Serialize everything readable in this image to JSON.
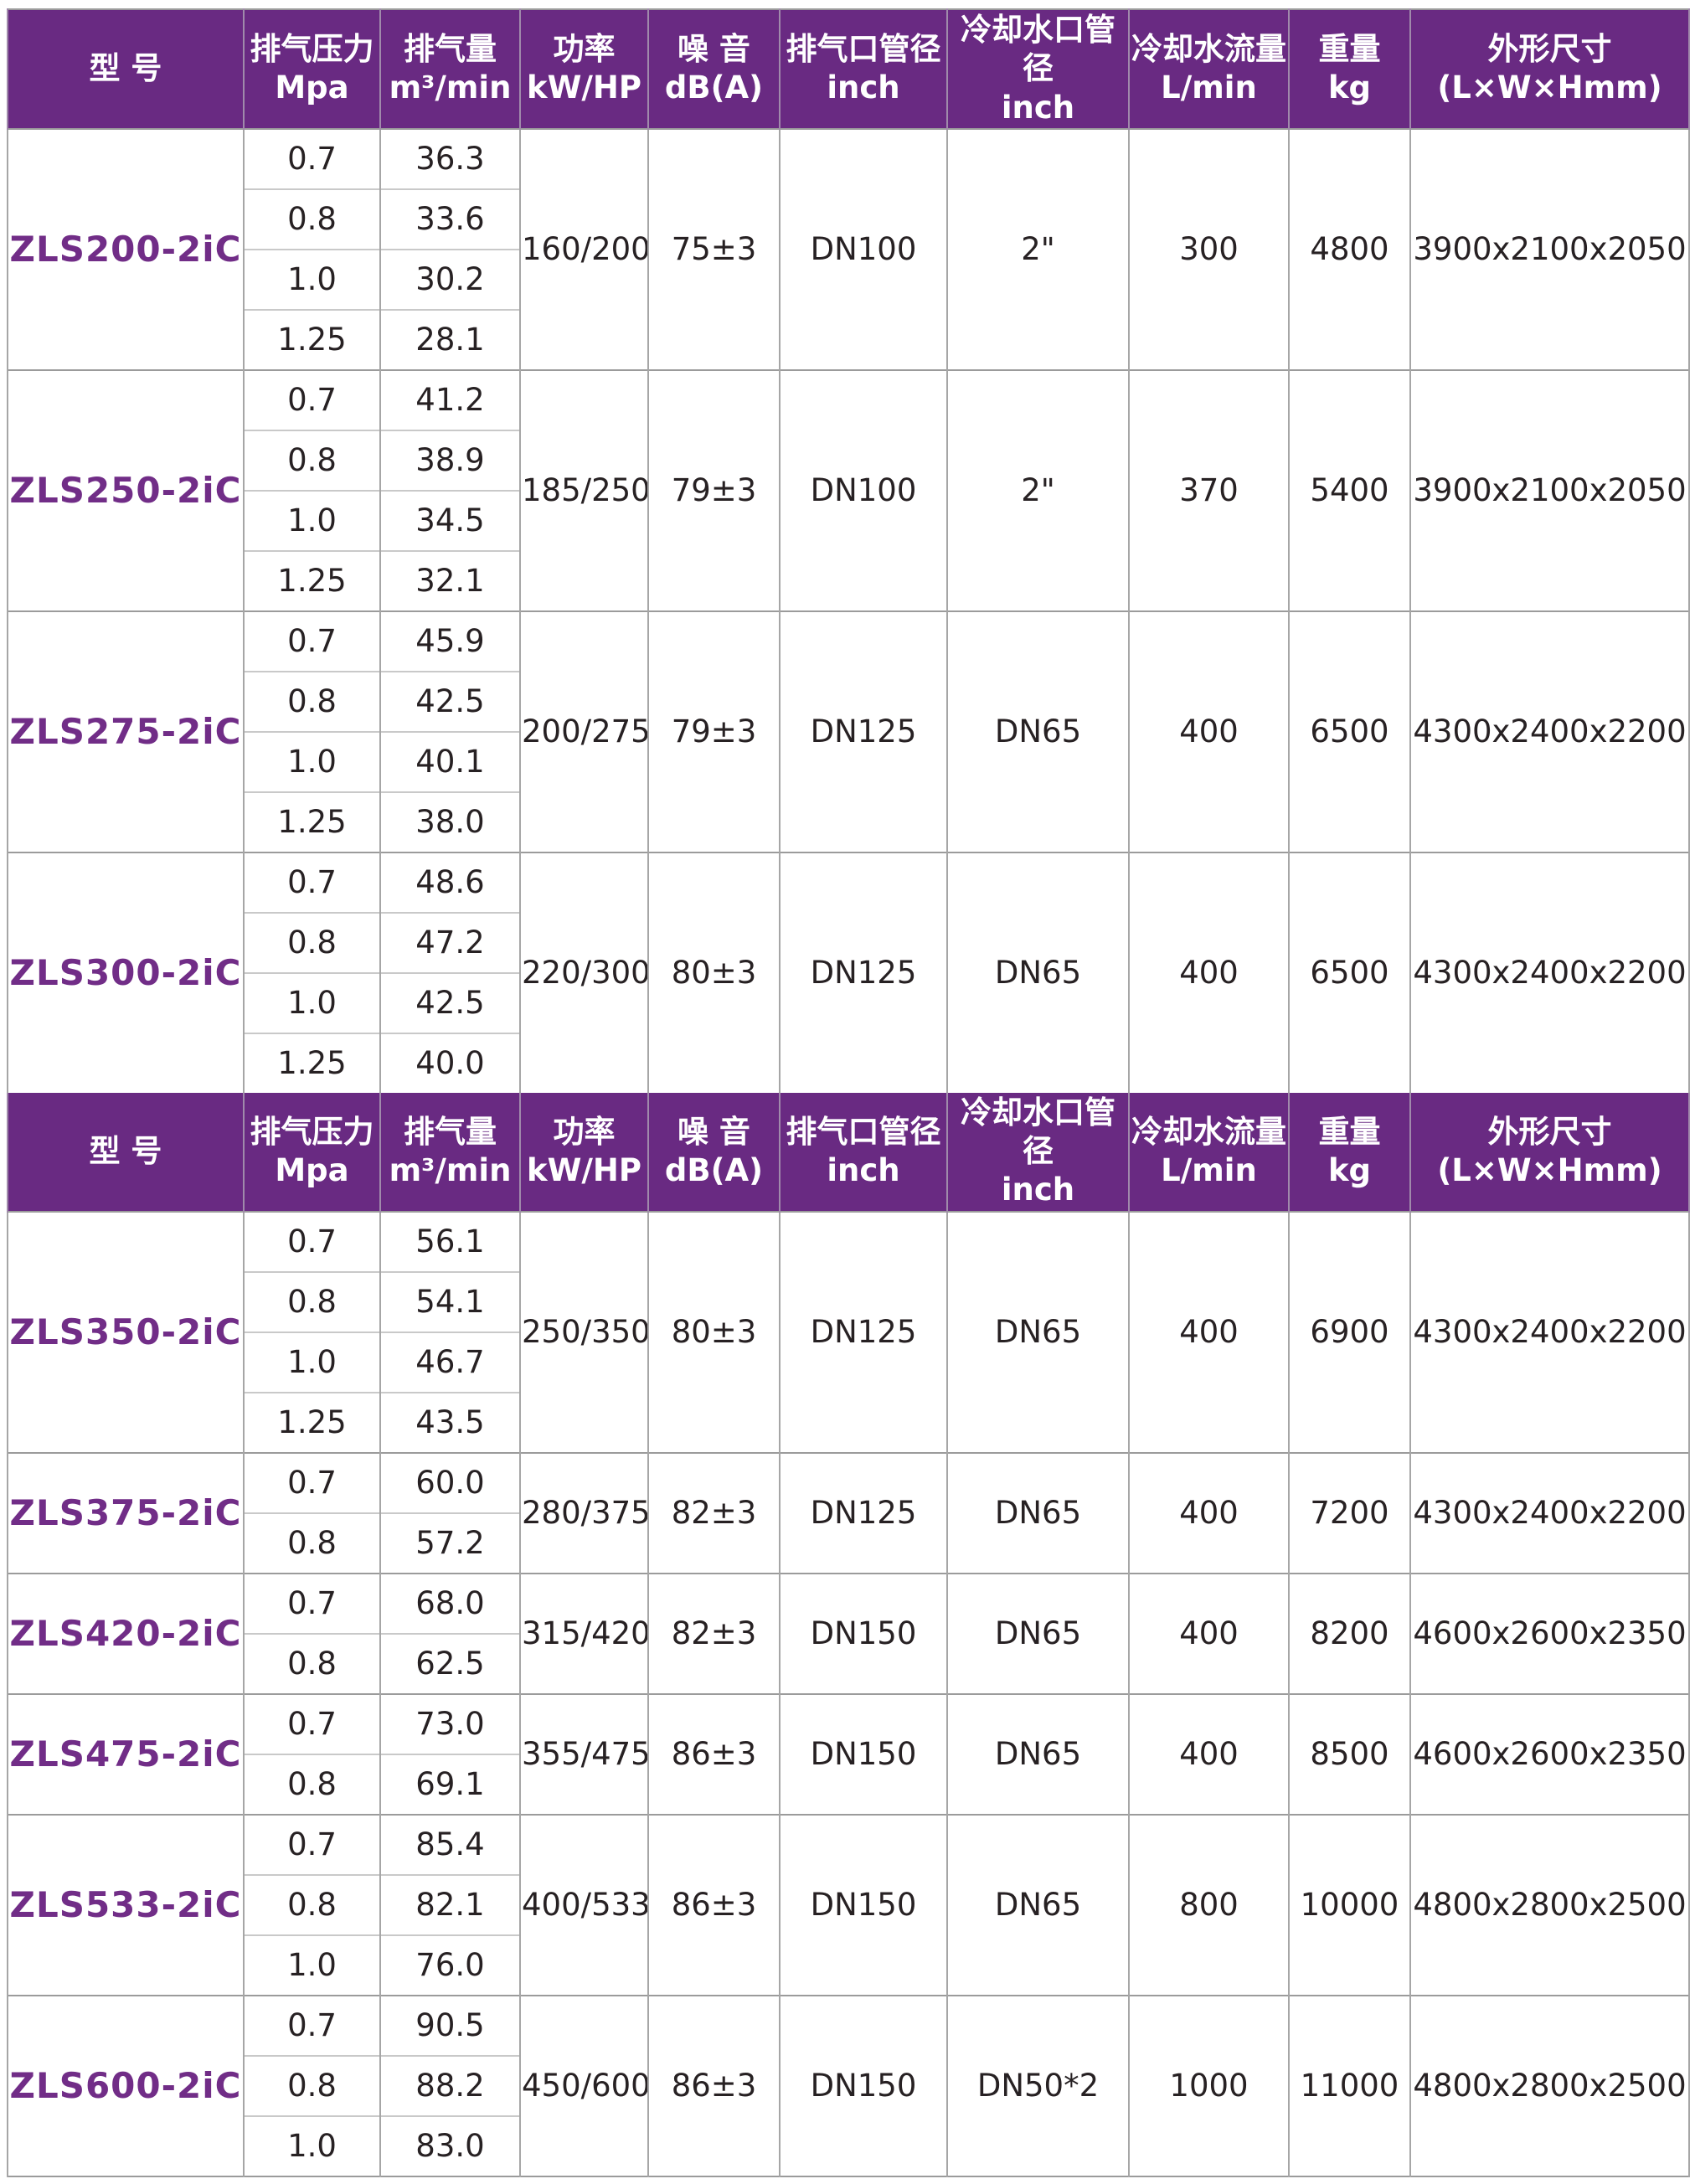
{
  "colors": {
    "header_bg": "#692a82",
    "header_text": "#ffffff",
    "model_text": "#712d87",
    "data_text": "#272123",
    "grid_line": "#a6a6a6",
    "block_line": "#9b9b9b",
    "sub_line": "#c9c9c9"
  },
  "table": {
    "columns": [
      {
        "id": "model",
        "line1": "型  号",
        "line2": ""
      },
      {
        "id": "press",
        "line1": "排气压力",
        "line2": "Mpa"
      },
      {
        "id": "vol",
        "line1": "排气量",
        "line2": "m³/min"
      },
      {
        "id": "power",
        "line1": "功率",
        "line2": "kW/HP"
      },
      {
        "id": "noise",
        "line1": "噪 音",
        "line2": "dB(A)"
      },
      {
        "id": "outlet",
        "line1": "排气口管径",
        "line2": "inch"
      },
      {
        "id": "coolport",
        "line1": "冷却水口管径",
        "line2": "inch"
      },
      {
        "id": "coolflow",
        "line1": "冷却水流量",
        "line2": "L/min"
      },
      {
        "id": "weight",
        "line1": "重量",
        "line2": "kg"
      },
      {
        "id": "dims",
        "line1": "外形尺寸",
        "line2": "(L×W×Hmm)"
      }
    ],
    "sections": [
      {
        "models": [
          {
            "model": "ZLS200-2iC",
            "rows": [
              {
                "pressure": "0.7",
                "volume": "36.3"
              },
              {
                "pressure": "0.8",
                "volume": "33.6"
              },
              {
                "pressure": "1.0",
                "volume": "30.2"
              },
              {
                "pressure": "1.25",
                "volume": "28.1"
              }
            ],
            "power": "160/200",
            "noise": "75±3",
            "outlet": "DN100",
            "coolport": "2\"",
            "coolflow": "300",
            "weight": "4800",
            "dims": "3900x2100x2050"
          },
          {
            "model": "ZLS250-2iC",
            "rows": [
              {
                "pressure": "0.7",
                "volume": "41.2"
              },
              {
                "pressure": "0.8",
                "volume": "38.9"
              },
              {
                "pressure": "1.0",
                "volume": "34.5"
              },
              {
                "pressure": "1.25",
                "volume": "32.1"
              }
            ],
            "power": "185/250",
            "noise": "79±3",
            "outlet": "DN100",
            "coolport": "2\"",
            "coolflow": "370",
            "weight": "5400",
            "dims": "3900x2100x2050"
          },
          {
            "model": "ZLS275-2iC",
            "rows": [
              {
                "pressure": "0.7",
                "volume": "45.9"
              },
              {
                "pressure": "0.8",
                "volume": "42.5"
              },
              {
                "pressure": "1.0",
                "volume": "40.1"
              },
              {
                "pressure": "1.25",
                "volume": "38.0"
              }
            ],
            "power": "200/275",
            "noise": "79±3",
            "outlet": "DN125",
            "coolport": "DN65",
            "coolflow": "400",
            "weight": "6500",
            "dims": "4300x2400x2200"
          },
          {
            "model": "ZLS300-2iC",
            "rows": [
              {
                "pressure": "0.7",
                "volume": "48.6"
              },
              {
                "pressure": "0.8",
                "volume": "47.2"
              },
              {
                "pressure": "1.0",
                "volume": "42.5"
              },
              {
                "pressure": "1.25",
                "volume": "40.0"
              }
            ],
            "power": "220/300",
            "noise": "80±3",
            "outlet": "DN125",
            "coolport": "DN65",
            "coolflow": "400",
            "weight": "6500",
            "dims": "4300x2400x2200"
          }
        ]
      },
      {
        "models": [
          {
            "model": "ZLS350-2iC",
            "rows": [
              {
                "pressure": "0.7",
                "volume": "56.1"
              },
              {
                "pressure": "0.8",
                "volume": "54.1"
              },
              {
                "pressure": "1.0",
                "volume": "46.7"
              },
              {
                "pressure": "1.25",
                "volume": "43.5"
              }
            ],
            "power": "250/350",
            "noise": "80±3",
            "outlet": "DN125",
            "coolport": "DN65",
            "coolflow": "400",
            "weight": "6900",
            "dims": "4300x2400x2200"
          },
          {
            "model": "ZLS375-2iC",
            "rows": [
              {
                "pressure": "0.7",
                "volume": "60.0"
              },
              {
                "pressure": "0.8",
                "volume": "57.2"
              }
            ],
            "power": "280/375",
            "noise": "82±3",
            "outlet": "DN125",
            "coolport": "DN65",
            "coolflow": "400",
            "weight": "7200",
            "dims": "4300x2400x2200"
          },
          {
            "model": "ZLS420-2iC",
            "rows": [
              {
                "pressure": "0.7",
                "volume": "68.0"
              },
              {
                "pressure": "0.8",
                "volume": "62.5"
              }
            ],
            "power": "315/420",
            "noise": "82±3",
            "outlet": "DN150",
            "coolport": "DN65",
            "coolflow": "400",
            "weight": "8200",
            "dims": "4600x2600x2350"
          },
          {
            "model": "ZLS475-2iC",
            "rows": [
              {
                "pressure": "0.7",
                "volume": "73.0"
              },
              {
                "pressure": "0.8",
                "volume": "69.1"
              }
            ],
            "power": "355/475",
            "noise": "86±3",
            "outlet": "DN150",
            "coolport": "DN65",
            "coolflow": "400",
            "weight": "8500",
            "dims": "4600x2600x2350"
          },
          {
            "model": "ZLS533-2iC",
            "rows": [
              {
                "pressure": "0.7",
                "volume": "85.4"
              },
              {
                "pressure": "0.8",
                "volume": "82.1"
              },
              {
                "pressure": "1.0",
                "volume": "76.0"
              }
            ],
            "power": "400/533",
            "noise": "86±3",
            "outlet": "DN150",
            "coolport": "DN65",
            "coolflow": "800",
            "weight": "10000",
            "dims": "4800x2800x2500"
          },
          {
            "model": "ZLS600-2iC",
            "rows": [
              {
                "pressure": "0.7",
                "volume": "90.5"
              },
              {
                "pressure": "0.8",
                "volume": "88.2"
              },
              {
                "pressure": "1.0",
                "volume": "83.0"
              }
            ],
            "power": "450/600",
            "noise": "86±3",
            "outlet": "DN150",
            "coolport": "DN50*2",
            "coolflow": "1000",
            "weight": "11000",
            "dims": "4800x2800x2500"
          }
        ]
      }
    ]
  }
}
